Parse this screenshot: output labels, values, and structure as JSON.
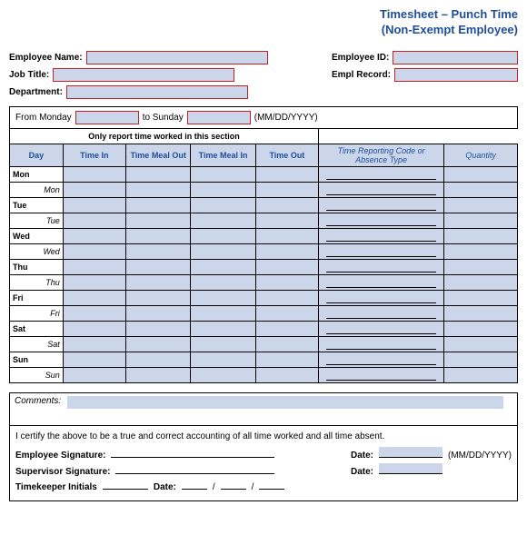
{
  "title": {
    "line1": "Timesheet – Punch Time",
    "line2": "(Non-Exempt Employee)"
  },
  "info": {
    "employee_name_lbl": "Employee Name:",
    "job_title_lbl": "Job Title:",
    "department_lbl": "Department:",
    "employee_id_lbl": "Employee ID:",
    "empl_record_lbl": "Empl Record:"
  },
  "period": {
    "from_lbl": "From Monday",
    "to_lbl": "to Sunday",
    "fmt": "(MM/DD/YYYY)"
  },
  "table": {
    "section_hdr": "Only report time worked in this section",
    "cols": {
      "day": "Day",
      "time_in": "Time In",
      "meal_out": "Time Meal Out",
      "meal_in": "Time Meal In",
      "time_out": "Time Out",
      "code": "Time Reporting Code or Absence Type",
      "qty": "Quantity"
    },
    "days": [
      "Mon",
      "Tue",
      "Wed",
      "Thu",
      "Fri",
      "Sat",
      "Sun"
    ]
  },
  "comments_lbl": "Comments:",
  "cert": {
    "statement": "I certify the above to be a true and correct accounting of all time worked and all time absent.",
    "emp_sig_lbl": "Employee Signature:",
    "sup_sig_lbl": "Supervisor Signature:",
    "tk_lbl": "Timekeeper Initials",
    "date_lbl": "Date:",
    "date_fmt": "(MM/DD/YYYY)"
  },
  "colors": {
    "fill": "#ccd6ea",
    "title": "#1f4e99",
    "redborder": "#c02020"
  }
}
